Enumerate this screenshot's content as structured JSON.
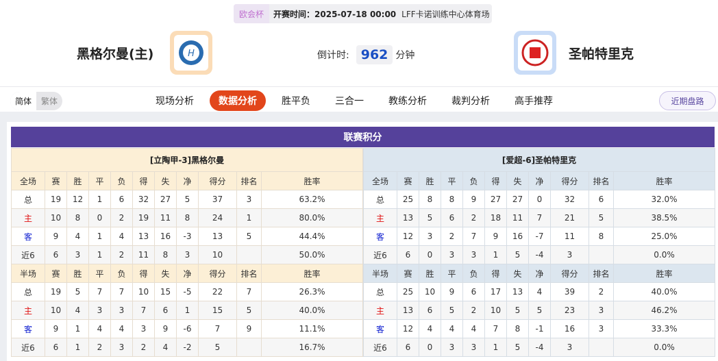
{
  "header": {
    "cup": "欧会杯",
    "kickoff": "开赛时间：2025-07-18 00:00",
    "venue": "LFF卡诺训练中心体育场",
    "home_team": "黑格尔曼(主)",
    "away_team": "圣帕特里克",
    "countdown_label": "倒计时:",
    "countdown_value": "962",
    "countdown_unit": "分钟"
  },
  "lang": {
    "simplified": "简体",
    "traditional": "繁体"
  },
  "nav": {
    "items": [
      "现场分析",
      "数据分析",
      "胜平负",
      "三合一",
      "教练分析",
      "裁判分析",
      "高手推荐"
    ],
    "active": 1,
    "recent": "近期盘路"
  },
  "colors": {
    "accent": "#e2461b",
    "title_bar": "#55419b",
    "home": "#e01010",
    "away": "#1020d0"
  },
  "standings": {
    "title": "联赛积分",
    "columns": [
      "赛",
      "胜",
      "平",
      "负",
      "得",
      "失",
      "净",
      "得分",
      "排名",
      "胜率"
    ],
    "home": {
      "heading": "[立陶甲-3]黑格尔曼",
      "full": {
        "label": "全场",
        "rows": [
          [
            "总",
            "19",
            "12",
            "1",
            "6",
            "32",
            "27",
            "5",
            "37",
            "3",
            "63.2%"
          ],
          [
            "主",
            "10",
            "8",
            "0",
            "2",
            "19",
            "11",
            "8",
            "24",
            "1",
            "80.0%"
          ],
          [
            "客",
            "9",
            "4",
            "1",
            "4",
            "13",
            "16",
            "-3",
            "13",
            "5",
            "44.4%"
          ],
          [
            "近6",
            "6",
            "3",
            "1",
            "2",
            "11",
            "8",
            "3",
            "10",
            "",
            "50.0%"
          ]
        ]
      },
      "half": {
        "label": "半场",
        "rows": [
          [
            "总",
            "19",
            "5",
            "7",
            "7",
            "10",
            "15",
            "-5",
            "22",
            "7",
            "26.3%"
          ],
          [
            "主",
            "10",
            "4",
            "3",
            "3",
            "7",
            "6",
            "1",
            "15",
            "5",
            "40.0%"
          ],
          [
            "客",
            "9",
            "1",
            "4",
            "4",
            "3",
            "9",
            "-6",
            "7",
            "9",
            "11.1%"
          ],
          [
            "近6",
            "6",
            "1",
            "2",
            "3",
            "2",
            "4",
            "-2",
            "5",
            "",
            "16.7%"
          ]
        ]
      }
    },
    "away": {
      "heading": "[爱超-6]圣帕特里克",
      "full": {
        "label": "全场",
        "rows": [
          [
            "总",
            "25",
            "8",
            "8",
            "9",
            "27",
            "27",
            "0",
            "32",
            "6",
            "32.0%"
          ],
          [
            "主",
            "13",
            "5",
            "6",
            "2",
            "18",
            "11",
            "7",
            "21",
            "5",
            "38.5%"
          ],
          [
            "客",
            "12",
            "3",
            "2",
            "7",
            "9",
            "16",
            "-7",
            "11",
            "8",
            "25.0%"
          ],
          [
            "近6",
            "6",
            "0",
            "3",
            "3",
            "1",
            "5",
            "-4",
            "3",
            "",
            "0.0%"
          ]
        ]
      },
      "half": {
        "label": "半场",
        "rows": [
          [
            "总",
            "25",
            "10",
            "9",
            "6",
            "17",
            "13",
            "4",
            "39",
            "2",
            "40.0%"
          ],
          [
            "主",
            "13",
            "6",
            "5",
            "2",
            "10",
            "5",
            "5",
            "23",
            "3",
            "46.2%"
          ],
          [
            "客",
            "12",
            "4",
            "4",
            "4",
            "7",
            "8",
            "-1",
            "16",
            "3",
            "33.3%"
          ],
          [
            "近6",
            "6",
            "0",
            "3",
            "3",
            "1",
            "5",
            "-4",
            "3",
            "",
            "0.0%"
          ]
        ]
      }
    }
  }
}
